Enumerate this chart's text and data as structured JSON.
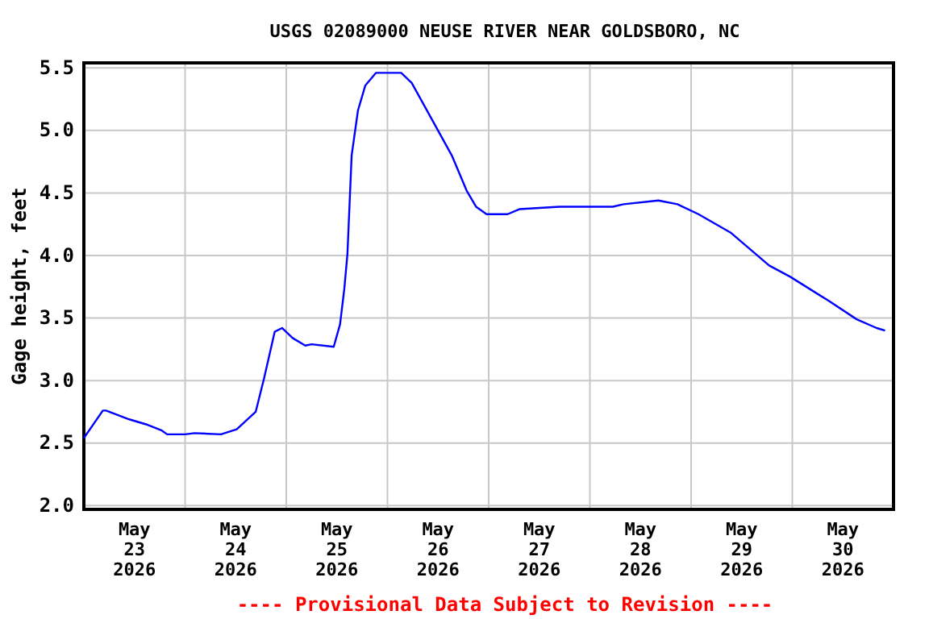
{
  "chart_data": {
    "type": "line",
    "title": "USGS 02089000 NEUSE RIVER NEAR GOLDSBORO, NC",
    "ylabel": "Gage height, feet",
    "annotations": [
      "---- Provisional Data Subject to Revision ----"
    ],
    "xlim": [
      "2026-05-23T00:00",
      "2026-05-31T00:00"
    ],
    "xticks": [
      {
        "value": "2026-05-23T12:00",
        "label": "May 23 2026"
      },
      {
        "value": "2026-05-24T00:00",
        "label": null
      },
      {
        "value": "2026-05-24T12:00",
        "label": "May 24 2026"
      },
      {
        "value": "2026-05-25T00:00",
        "label": null
      },
      {
        "value": "2026-05-25T12:00",
        "label": "May 25 2026"
      },
      {
        "value": "2026-05-26T00:00",
        "label": null
      },
      {
        "value": "2026-05-26T12:00",
        "label": "May 26 2026"
      },
      {
        "value": "2026-05-27T00:00",
        "label": null
      },
      {
        "value": "2026-05-27T12:00",
        "label": "May 27 2026"
      },
      {
        "value": "2026-05-28T00:00",
        "label": null
      },
      {
        "value": "2026-05-28T12:00",
        "label": "May 28 2026"
      },
      {
        "value": "2026-05-29T00:00",
        "label": null
      },
      {
        "value": "2026-05-29T12:00",
        "label": "May 29 2026"
      },
      {
        "value": "2026-05-30T00:00",
        "label": null
      },
      {
        "value": "2026-05-30T12:00",
        "label": "May 30 2026"
      }
    ],
    "ylim": [
      1.97,
      5.54
    ],
    "yticks": [
      {
        "value": 2,
        "label": "2.0"
      },
      {
        "value": 2.5,
        "label": "2.5"
      },
      {
        "value": 3,
        "label": "3.0"
      },
      {
        "value": 3.5,
        "label": "3.5"
      },
      {
        "value": 4,
        "label": "4.0"
      },
      {
        "value": 4.5,
        "label": "4.5"
      },
      {
        "value": 5,
        "label": "5.0"
      },
      {
        "value": 5.5,
        "label": "5.5"
      }
    ],
    "grid": true,
    "marker": "none",
    "line_style": "solid",
    "x": [
      "2026-05-23T00:00",
      "2026-05-23T04:30",
      "2026-05-23T05:15",
      "2026-05-23T10:45",
      "2026-05-23T14:45",
      "2026-05-23T18:30",
      "2026-05-23T19:45",
      "2026-05-24T00:00",
      "2026-05-24T02:15",
      "2026-05-24T08:30",
      "2026-05-24T12:15",
      "2026-05-24T16:45",
      "2026-05-24T18:45",
      "2026-05-24T21:15",
      "2026-05-24T23:00",
      "2026-05-25T01:30",
      "2026-05-25T04:30",
      "2026-05-25T06:00",
      "2026-05-25T11:15",
      "2026-05-25T12:45",
      "2026-05-25T13:45",
      "2026-05-25T14:30",
      "2026-05-25T15:30",
      "2026-05-25T17:00",
      "2026-05-25T18:45",
      "2026-05-25T21:15",
      "2026-05-26T03:15",
      "2026-05-26T05:45",
      "2026-05-26T10:00",
      "2026-05-26T15:15",
      "2026-05-26T18:45",
      "2026-05-26T21:00",
      "2026-05-26T23:30",
      "2026-05-27T04:30",
      "2026-05-27T07:15",
      "2026-05-27T16:45",
      "2026-05-28T05:30",
      "2026-05-28T08:00",
      "2026-05-28T16:15",
      "2026-05-28T20:45",
      "2026-05-29T01:45",
      "2026-05-29T09:30",
      "2026-05-29T18:30",
      "2026-05-29T23:30",
      "2026-05-30T08:30",
      "2026-05-30T15:15",
      "2026-05-30T20:00",
      "2026-05-30T22:00"
    ],
    "series": [
      {
        "color": "#0000ff",
        "values": [
          2.54,
          2.76,
          2.76,
          2.69,
          2.65,
          2.6,
          2.57,
          2.57,
          2.58,
          2.57,
          2.61,
          2.75,
          3.02,
          3.39,
          3.42,
          3.34,
          3.28,
          3.29,
          3.27,
          3.45,
          3.73,
          4.01,
          4.8,
          5.16,
          5.36,
          5.46,
          5.46,
          5.38,
          5.12,
          4.8,
          4.52,
          4.39,
          4.33,
          4.33,
          4.37,
          4.39,
          4.39,
          4.41,
          4.44,
          4.41,
          4.33,
          4.18,
          3.92,
          3.83,
          3.64,
          3.49,
          3.42,
          3.4
        ]
      }
    ]
  }
}
